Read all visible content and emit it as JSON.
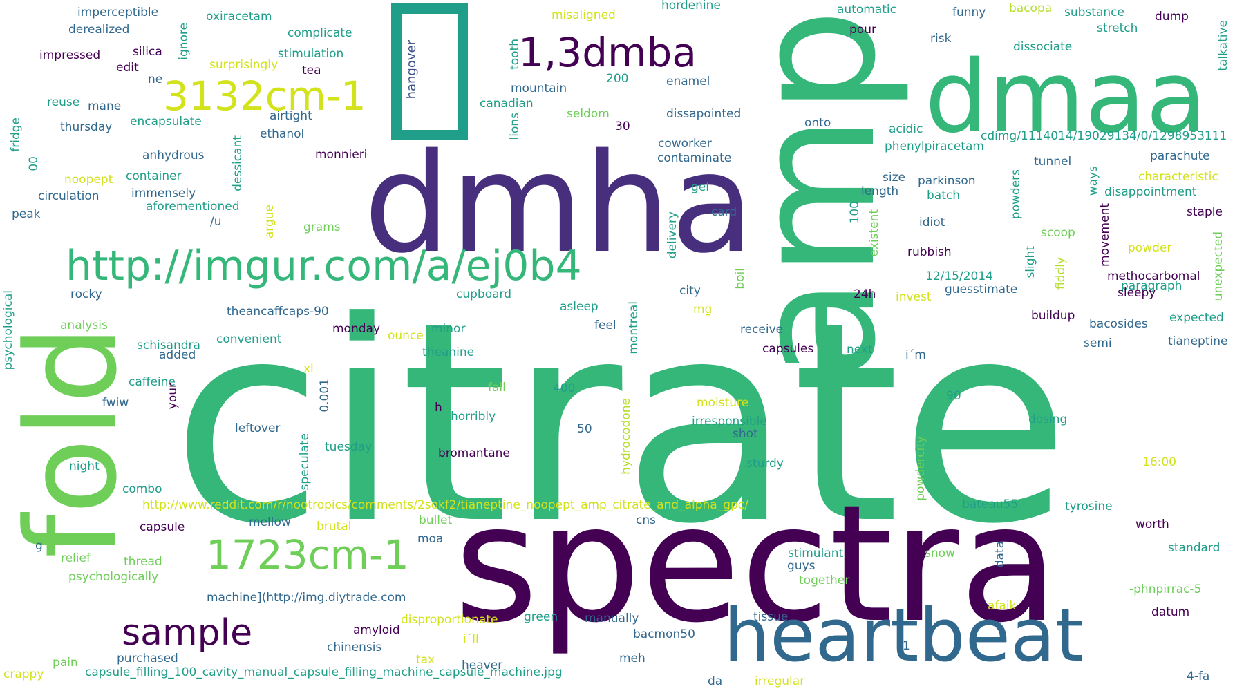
{
  "colors": {
    "purple": "#440154",
    "indigo": "#472f7d",
    "blue": "#3b528b",
    "slate": "#31688e",
    "teal": "#26828e",
    "cyan": "#1f9e89",
    "green": "#35b779",
    "lime": "#6ece58",
    "yellowgreen": "#b5de2b",
    "yellow": "#d2e21b"
  },
  "words": {
    "citrate": "citrate",
    "spectra": "spectra",
    "dmha": "dmha",
    "amp": "amp",
    "dmaa": "dmaa",
    "fold": "fold",
    "heartbeat": "heartbeat",
    "imgur": "http://imgur.com/a/ej0b4",
    "dmba": "1,3dmba",
    "cm3132": "3132cm-1",
    "cm1723": "1723cm-1",
    "sample": "sample",
    "reddit": "http://www.reddit.com/r/nootropics/comments/2sokf2/tianeptine_noopept_amp_citrate_and_alpha_gpc/",
    "capsulefile": "capsule_filling_100_cavity_manual_capsule_filling_machine_capsule_machine.jpg",
    "hangover": "hangover",
    "imperceptible": "imperceptible",
    "oxiracetam": "oxiracetam",
    "misaligned": "misaligned",
    "hordenine": "hordenine",
    "automatic": "automatic",
    "funny": "funny",
    "bacopa": "bacopa",
    "substance": "substance",
    "dump": "dump",
    "stretch": "stretch",
    "talkative": "talkative",
    "derealized": "derealized",
    "complicate": "complicate",
    "pour": "pour",
    "risk": "risk",
    "dissociate": "dissociate",
    "impressed": "impressed",
    "silica": "silica",
    "edit": "edit",
    "stimulation": "stimulation",
    "surprisingly": "surprisingly",
    "tea": "tea",
    "ne": "ne",
    "ignore": "ignore",
    "tooth": "tooth",
    "mountain": "mountain",
    "n200": "200",
    "enamel": "enamel",
    "canadian": "canadian",
    "seldom": "seldom",
    "lions": "lions",
    "n30": "30",
    "dissapointed": "dissapointed",
    "reuse": "reuse",
    "mane": "mane",
    "airtight": "airtight",
    "encapsulate": "encapsulate",
    "thursday": "thursday",
    "ethanol": "ethanol",
    "fridge": "fridge",
    "n00": "00",
    "anhydrous": "anhydrous",
    "dessicant": "dessicant",
    "monnieri": "monnieri",
    "noopept": "noopept",
    "container": "container",
    "immensely": "immensely",
    "circulation": "circulation",
    "aforementioned": "aforementioned",
    "peak": "peak",
    "u": "/u",
    "argue": "argue",
    "grams": "grams",
    "onto": "onto",
    "acidic": "acidic",
    "cdimg": "cdimg/1114014/19029134/0/1298953111",
    "phenylpiracetam": "phenylpiracetam",
    "parachute": "parachute",
    "coworker": "coworker",
    "contaminate": "contaminate",
    "tunnel": "tunnel",
    "size": "size",
    "length": "length",
    "parkinson": "parkinson",
    "batch": "batch",
    "powders": "powders",
    "ways": "ways",
    "characteristic": "characteristic",
    "disappointment": "disappointment",
    "gel": "gel",
    "card": "card",
    "delivery": "delivery",
    "n100": "100",
    "idiot": "idiot",
    "staple": "staple",
    "existent": "existent",
    "scoop": "scoop",
    "movement": "movement",
    "powder": "powder",
    "rubbish": "rubbish",
    "slight": "slight",
    "fiddly": "fiddly",
    "unexpected": "unexpected",
    "date": "12/15/2014",
    "methocarbomal": "methocarbomal",
    "paragraph": "paragraph",
    "guesstimate": "guesstimate",
    "sleepy": "sleepy",
    "boil": "boil",
    "city": "city",
    "mg": "mg",
    "h24": "24h",
    "invest": "invest",
    "rocky": "rocky",
    "cupboard": "cupboard",
    "asleep": "asleep",
    "theancaffcaps": "theancaffcaps-90",
    "monday": "monday",
    "ounce": "ounce",
    "minor": "minor",
    "feel": "feel",
    "montreal": "montreal",
    "receive": "receive",
    "buildup": "buildup",
    "bacosides": "bacosides",
    "expected": "expected",
    "psychological": "psychological",
    "analysis": "analysis",
    "convenient": "convenient",
    "schisandra": "schisandra",
    "added": "added",
    "theanine": "theanine",
    "capsules": "capsules",
    "next": "next",
    "im": "i´m",
    "semi": "semi",
    "tianeptine": "tianeptine",
    "caffeine": "caffeine",
    "xl": "xl",
    "fwiw": "fwiw",
    "your": "your",
    "n0001": "0.001",
    "fall": "fall",
    "n400": "400",
    "moisture": "moisture",
    "n90": "90",
    "h": "h",
    "horribly": "horribly",
    "irresponsible": "irresponsible",
    "dosing": "dosing",
    "leftover": "leftover",
    "n50": "50",
    "shot": "shot",
    "hydrocodone": "hydrocodone",
    "speculate": "speculate",
    "tuesday": "tuesday",
    "bromantane": "bromantane",
    "sturdy": "sturdy",
    "powdercity": "powdercity",
    "t1600": "16:00",
    "night": "night",
    "combo": "combo",
    "bateau55": "bateau55",
    "tyrosine": "tyrosine",
    "capsule": "capsule",
    "mellow": "mellow",
    "brutal": "brutal",
    "bullet": "bullet",
    "cns": "cns",
    "worth": "worth",
    "g": "g",
    "moa": "moa",
    "relief": "relief",
    "thread": "thread",
    "stimulant": "stimulant",
    "data": "data",
    "snow": "snow",
    "standard": "standard",
    "psychologically": "psychologically",
    "guys": "guys",
    "together": "together",
    "phnpirrac": "-phnpirrac-5",
    "machine": "machine](http://img.diytrade.com",
    "disproportionate": "disproportionate",
    "green": "green",
    "manually": "manually",
    "tissue": "tissue",
    "afaik": "afaik",
    "datum": "datum",
    "amyloid": "amyloid",
    "ill": "i´ll",
    "bacmon50": "bacmon50",
    "chinensis": "chinensis",
    "purchased": "purchased",
    "pain": "pain",
    "tax": "tax",
    "heaver": "heaver",
    "meh": "meh",
    "n1": "1",
    "crappy": "crappy",
    "da": "da",
    "irregular": "irregular",
    "fa4": "4-fa"
  }
}
